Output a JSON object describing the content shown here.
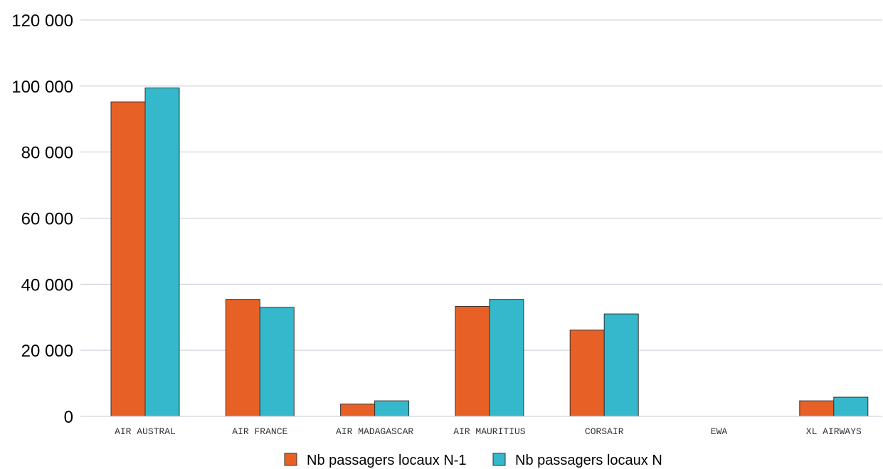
{
  "chart_data": {
    "type": "bar",
    "categories": [
      "AIR AUSTRAL",
      "AIR FRANCE",
      "AIR MADAGASCAR",
      "AIR MAURITIUS",
      "CORSAIR",
      "EWA",
      "XL AIRWAYS"
    ],
    "series": [
      {
        "name": "Nb passagers locaux N-1",
        "color": "#e76127",
        "values": [
          95200,
          35400,
          3700,
          33300,
          26100,
          0,
          4700
        ]
      },
      {
        "name": "Nb passagers locaux N",
        "color": "#35b8cc",
        "values": [
          99400,
          33000,
          4700,
          35400,
          31000,
          0,
          5800
        ]
      }
    ],
    "ylim": [
      0,
      120000
    ],
    "yticks": [
      0,
      20000,
      40000,
      60000,
      80000,
      100000,
      120000
    ],
    "ytick_labels": [
      "0",
      "20 000",
      "40 000",
      "60 000",
      "80 000",
      "100 000",
      "120 000"
    ],
    "grid": true,
    "legend_position": "bottom-center",
    "title": "",
    "xlabel": "",
    "ylabel": ""
  }
}
